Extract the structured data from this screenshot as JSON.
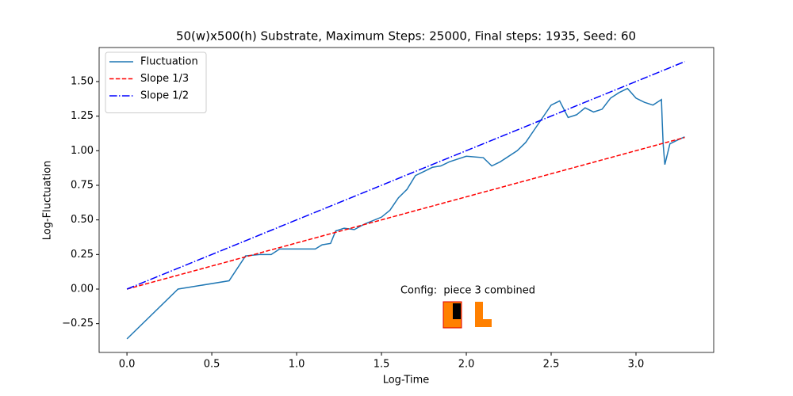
{
  "chart_data": {
    "type": "line",
    "title": "50(w)x500(h) Substrate, Maximum Steps: 25000, Final steps: 1935, Seed: 60",
    "x_label": "Log-Time",
    "y_label": "Log-Fluctuation",
    "annotation": "Config:  piece 3 combined",
    "xlim": [
      -0.164,
      3.458
    ],
    "ylim": [
      -0.458,
      1.746
    ],
    "xticks": [
      {
        "value": 0,
        "label": "0.0"
      },
      {
        "value": 0.5,
        "label": "0.5"
      },
      {
        "value": 1,
        "label": "1.0"
      },
      {
        "value": 1.5,
        "label": "1.5"
      },
      {
        "value": 2,
        "label": "2.0"
      },
      {
        "value": 2.5,
        "label": "2.5"
      },
      {
        "value": 3,
        "label": "3.0"
      }
    ],
    "yticks": [
      {
        "value": -0.25,
        "label": "−0.25"
      },
      {
        "value": 0,
        "label": "0.00"
      },
      0.25,
      {
        "value": 0.5,
        "label": "0.50"
      },
      0.75,
      {
        "value": 1,
        "label": "1.00"
      },
      1.25,
      {
        "value": 1.5,
        "label": "1.50"
      }
    ],
    "grid": false,
    "legend": "upper left",
    "series": [
      {
        "name": "Fluctuation",
        "color": "#1f77b4",
        "dash": "solid",
        "x": [
          0,
          0.301,
          0.602,
          0.699,
          0.78,
          0.85,
          0.9,
          1.0,
          1.11,
          1.15,
          1.2,
          1.23,
          1.28,
          1.34,
          1.4,
          1.5,
          1.55,
          1.6,
          1.65,
          1.7,
          1.75,
          1.8,
          1.85,
          1.9,
          2.0,
          2.1,
          2.15,
          2.2,
          2.3,
          2.35,
          2.4,
          2.45,
          2.5,
          2.55,
          2.6,
          2.65,
          2.7,
          2.75,
          2.8,
          2.85,
          2.9,
          2.95,
          3.0,
          3.05,
          3.1,
          3.15,
          3.155,
          3.16,
          3.17,
          3.2,
          3.25,
          3.287
        ],
        "values": [
          -0.36,
          0.0,
          0.06,
          0.24,
          0.25,
          0.25,
          0.29,
          0.29,
          0.29,
          0.32,
          0.33,
          0.42,
          0.44,
          0.43,
          0.47,
          0.52,
          0.57,
          0.66,
          0.72,
          0.82,
          0.85,
          0.88,
          0.89,
          0.92,
          0.96,
          0.95,
          0.89,
          0.92,
          1.0,
          1.06,
          1.15,
          1.24,
          1.33,
          1.36,
          1.24,
          1.26,
          1.31,
          1.28,
          1.3,
          1.38,
          1.42,
          1.45,
          1.38,
          1.35,
          1.33,
          1.37,
          1.2,
          1.05,
          0.9,
          1.05,
          1.08,
          1.1
        ]
      },
      {
        "name": "Slope 1/3",
        "color": "#ff0000",
        "dash": "dashed",
        "x": [
          0,
          3.287
        ],
        "values": [
          0,
          1.096
        ]
      },
      {
        "name": "Slope 1/2",
        "color": "#0000ff",
        "dash": "dashdot",
        "x": [
          0,
          3.287
        ],
        "values": [
          0,
          1.644
        ]
      }
    ]
  }
}
